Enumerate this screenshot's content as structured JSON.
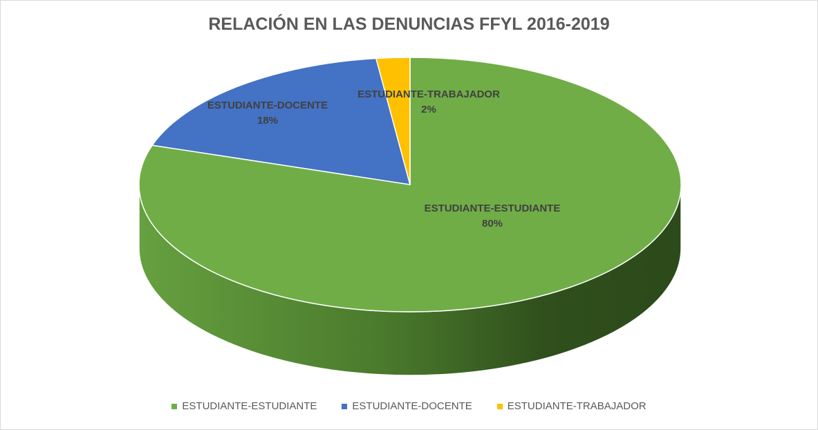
{
  "chart_data": {
    "type": "pie",
    "title": "RELACIÓN EN LAS DENUNCIAS FFYL 2016-2019",
    "slices": [
      {
        "name": "ESTUDIANTE-ESTUDIANTE",
        "value": 80,
        "label": "80%",
        "color": "#70ad47",
        "side_color": "#4e7a30"
      },
      {
        "name": "ESTUDIANTE-DOCENTE",
        "value": 18,
        "label": "18%",
        "color": "#4472c4",
        "side_color": "#2f5597"
      },
      {
        "name": "ESTUDIANTE-TRABAJADOR",
        "value": 2,
        "label": "2%",
        "color": "#ffc000",
        "side_color": "#bf9000"
      }
    ],
    "legend_position": "bottom",
    "style": "3d-pie"
  }
}
